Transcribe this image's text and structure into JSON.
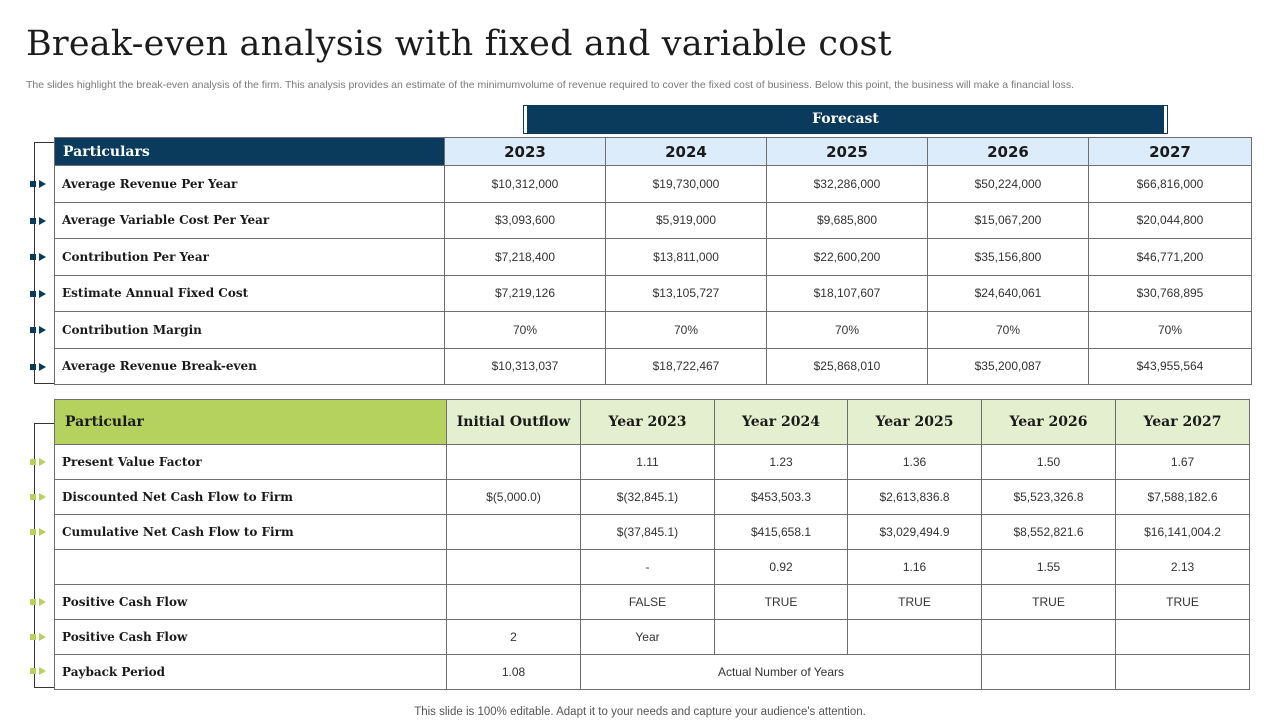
{
  "title": "Break-even analysis with fixed and variable cost",
  "subtitle": "The slides highlight the break-even analysis of the firm. This analysis provides an estimate of the minimumvolume of revenue required to cover the fixed cost of business. Below this point, the business will make a financial loss.",
  "forecast_label": "Forecast",
  "colors": {
    "navy": "#0a3a5c",
    "light_blue": "#dcecfb",
    "green": "#b5d15e",
    "light_green": "#e4efcf"
  },
  "table1": {
    "header": [
      "Particulars",
      "2023",
      "2024",
      "2025",
      "2026",
      "2027"
    ],
    "rows": [
      [
        "Average Revenue Per Year",
        "$10,312,000",
        "$19,730,000",
        "$32,286,000",
        "$50,224,000",
        "$66,816,000"
      ],
      [
        "Average Variable Cost Per Year",
        "$3,093,600",
        "$5,919,000",
        "$9,685,800",
        "$15,067,200",
        "$20,044,800"
      ],
      [
        "Contribution Per Year",
        "$7,218,400",
        "$13,811,000",
        "$22,600,200",
        "$35,156,800",
        "$46,771,200"
      ],
      [
        "Estimate Annual Fixed Cost",
        "$7,219,126",
        "$13,105,727",
        "$18,107,607",
        "$24,640,061",
        "$30,768,895"
      ],
      [
        "Contribution Margin",
        "70%",
        "70%",
        "70%",
        "70%",
        "70%"
      ],
      [
        "Average Revenue Break-even",
        "$10,313,037",
        "$18,722,467",
        "$25,868,010",
        "$35,200,087",
        "$43,955,564"
      ]
    ]
  },
  "table2": {
    "header": [
      "Particular",
      "Initial Outflow",
      "Year 2023",
      "Year 2024",
      "Year 2025",
      "Year 2026",
      "Year 2027"
    ],
    "rows": [
      [
        "Present Value Factor",
        "",
        "1.11",
        "1.23",
        "1.36",
        "1.50",
        "1.67"
      ],
      [
        "Discounted Net Cash Flow to Firm",
        "$(5,000.0)",
        "$(32,845.1)",
        "$453,503.3",
        "$2,613,836.8",
        "$5,523,326.8",
        "$7,588,182.6"
      ],
      [
        "Cumulative Net Cash Flow to Firm",
        "",
        "$(37,845.1)",
        "$415,658.1",
        "$3,029,494.9",
        "$8,552,821.6",
        "$16,141,004.2"
      ],
      [
        "",
        "",
        "-",
        "0.92",
        "1.16",
        "1.55",
        "2.13"
      ],
      [
        "Positive Cash Flow",
        "",
        "FALSE",
        "TRUE",
        "TRUE",
        "TRUE",
        "TRUE"
      ],
      [
        "Positive Cash Flow",
        "2",
        "Year",
        "",
        "",
        "",
        ""
      ]
    ],
    "payback": {
      "label": "Payback Period",
      "value": "1.08",
      "note": "Actual Number of Years"
    }
  },
  "footer": "This slide is 100% editable. Adapt it to your needs and capture your audience's attention."
}
